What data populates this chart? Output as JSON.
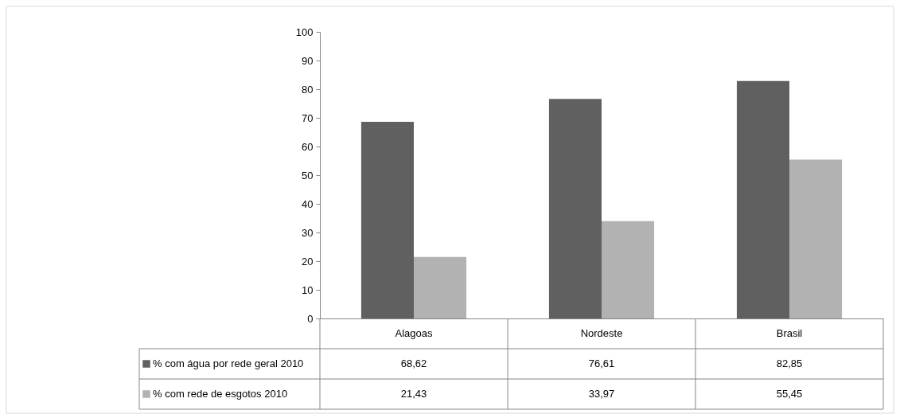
{
  "chart_data": {
    "type": "bar",
    "categories": [
      "Alagoas",
      "Nordeste",
      "Brasil"
    ],
    "series": [
      {
        "name": "% com água por rede geral 2010",
        "color": "#606060",
        "values": [
          68.62,
          76.61,
          82.85
        ],
        "value_labels": [
          "68,62",
          "76,61",
          "82,85"
        ]
      },
      {
        "name": "% com rede de esgotos 2010",
        "color": "#b2b2b2",
        "values": [
          21.43,
          33.97,
          55.45
        ],
        "value_labels": [
          "21,43",
          "33,97",
          "55,45"
        ]
      }
    ],
    "ylim": [
      0,
      100
    ],
    "yticks": [
      0,
      10,
      20,
      30,
      40,
      50,
      60,
      70,
      80,
      90,
      100
    ],
    "grid": false,
    "legend": "bottom"
  }
}
